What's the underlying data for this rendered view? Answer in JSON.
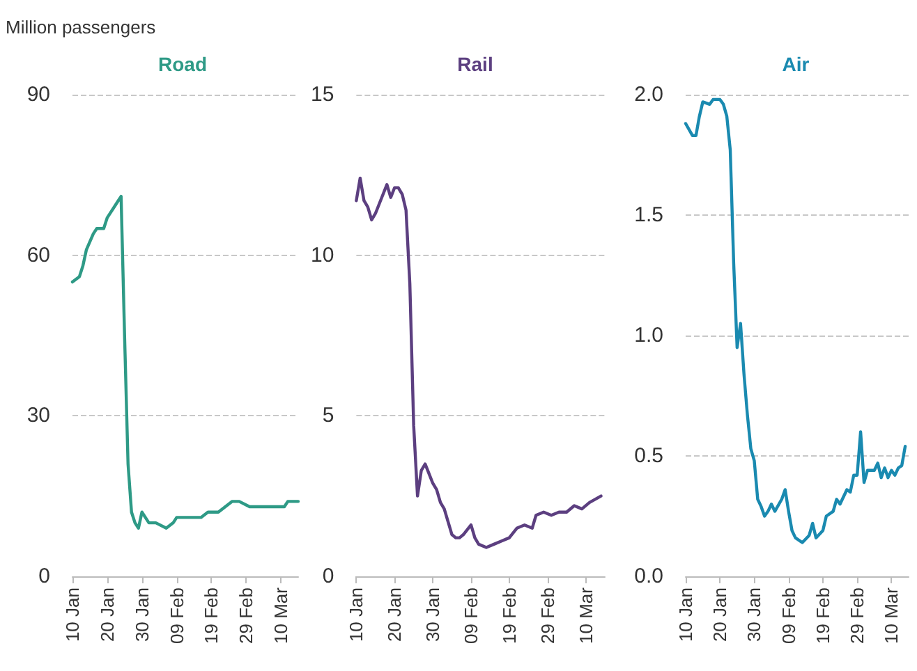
{
  "chart_data": [
    {
      "type": "line",
      "title": "Road",
      "ylabel": "Million passengers",
      "color": "#2e9a86",
      "marker": "none",
      "line_style": "solid",
      "grid": "y",
      "x": [
        "--01-10",
        "--01-12",
        "--01-13",
        "--01-14",
        "--01-16",
        "--01-17",
        "--01-19",
        "--01-20",
        "--01-22",
        "--01-23",
        "--01-24",
        "--01-25",
        "--01-26",
        "--01-27",
        "--01-28",
        "--01-29",
        "--01-30",
        "--02-01",
        "--02-03",
        "--02-06",
        "--02-08",
        "--02-09",
        "--02-12",
        "--02-16",
        "--02-18",
        "--02-21",
        "--02-23",
        "--02-25",
        "--02-27",
        "--03-01",
        "--03-06",
        "--03-11",
        "--03-12",
        "--03-15"
      ],
      "values": [
        55,
        56,
        58,
        61,
        64,
        65,
        65,
        67,
        69,
        70,
        71,
        45,
        21,
        12,
        10,
        9,
        12,
        10,
        10,
        9,
        10,
        11,
        11,
        11,
        12,
        12,
        13,
        14,
        14,
        13,
        13,
        13,
        14,
        14
      ],
      "xlim": [
        "--01-10",
        "--03-15"
      ],
      "xticks": [
        {
          "value": "--01-10",
          "label": "10 Jan"
        },
        {
          "value": "--01-20",
          "label": "20 Jan"
        },
        {
          "value": "--01-30",
          "label": "30 Jan"
        },
        {
          "value": "--02-09",
          "label": "09 Feb"
        },
        {
          "value": "--02-19",
          "label": "19 Feb"
        },
        {
          "value": "--02-29",
          "label": "29 Feb"
        },
        {
          "value": "--03-10",
          "label": "10 Mar"
        }
      ],
      "ylim": [
        0,
        90
      ],
      "yticks": [
        0,
        30,
        60,
        90
      ]
    },
    {
      "type": "line",
      "title": "Rail",
      "color": "#5c3f80",
      "marker": "none",
      "line_style": "solid",
      "grid": "y",
      "x": [
        "--01-10",
        "--01-11",
        "--01-12",
        "--01-13",
        "--01-14",
        "--01-15",
        "--01-17",
        "--01-18",
        "--01-19",
        "--01-20",
        "--01-21",
        "--01-22",
        "--01-23",
        "--01-24",
        "--01-25",
        "--01-26",
        "--01-27",
        "--01-28",
        "--01-29",
        "--01-30",
        "--01-31",
        "--02-01",
        "--02-02",
        "--02-03",
        "--02-04",
        "--02-05",
        "--02-06",
        "--02-07",
        "--02-09",
        "--02-10",
        "--02-11",
        "--02-13",
        "--02-15",
        "--02-17",
        "--02-19",
        "--02-21",
        "--02-23",
        "--02-25",
        "--02-26",
        "--02-28",
        "--03-01",
        "--03-03",
        "--03-05",
        "--03-07",
        "--03-09",
        "--03-11",
        "--03-14"
      ],
      "values": [
        11.7,
        12.4,
        11.7,
        11.5,
        11.1,
        11.3,
        11.9,
        12.2,
        11.8,
        12.1,
        12.1,
        11.9,
        11.4,
        9.1,
        4.7,
        2.5,
        3.3,
        3.5,
        3.2,
        2.9,
        2.7,
        2.3,
        2.1,
        1.7,
        1.3,
        1.2,
        1.2,
        1.3,
        1.6,
        1.2,
        1.0,
        0.9,
        1.0,
        1.1,
        1.2,
        1.5,
        1.6,
        1.5,
        1.9,
        2.0,
        1.9,
        2.0,
        2.0,
        2.2,
        2.1,
        2.3,
        2.5
      ],
      "xlim": [
        "--01-10",
        "--03-15"
      ],
      "xticks": [
        {
          "value": "--01-10",
          "label": "10 Jan"
        },
        {
          "value": "--01-20",
          "label": "20 Jan"
        },
        {
          "value": "--01-30",
          "label": "30 Jan"
        },
        {
          "value": "--02-09",
          "label": "09 Feb"
        },
        {
          "value": "--02-19",
          "label": "19 Feb"
        },
        {
          "value": "--02-29",
          "label": "29 Feb"
        },
        {
          "value": "--03-10",
          "label": "10 Mar"
        }
      ],
      "ylim": [
        0,
        15
      ],
      "yticks": [
        0,
        5,
        10,
        15
      ]
    },
    {
      "type": "line",
      "title": "Air",
      "color": "#1a8ab0",
      "marker": "none",
      "line_style": "solid",
      "grid": "y",
      "x": [
        "--01-10",
        "--01-12",
        "--01-13",
        "--01-14",
        "--01-15",
        "--01-17",
        "--01-18",
        "--01-20",
        "--01-21",
        "--01-22",
        "--01-23",
        "--01-24",
        "--01-25",
        "--01-26",
        "--01-27",
        "--01-28",
        "--01-29",
        "--01-30",
        "--01-31",
        "--02-01",
        "--02-02",
        "--02-03",
        "--02-04",
        "--02-05",
        "--02-07",
        "--02-08",
        "--02-09",
        "--02-10",
        "--02-11",
        "--02-13",
        "--02-15",
        "--02-16",
        "--02-17",
        "--02-19",
        "--02-20",
        "--02-22",
        "--02-23",
        "--02-24",
        "--02-26",
        "--02-27",
        "--02-28",
        "--02-29",
        "--03-01",
        "--03-02",
        "--03-03",
        "--03-05",
        "--03-06",
        "--03-07",
        "--03-08",
        "--03-09",
        "--03-10",
        "--03-11",
        "--03-12",
        "--03-13",
        "--03-14"
      ],
      "values": [
        1.88,
        1.83,
        1.83,
        1.91,
        1.97,
        1.96,
        1.98,
        1.98,
        1.96,
        1.91,
        1.77,
        1.3,
        0.95,
        1.05,
        0.84,
        0.67,
        0.53,
        0.48,
        0.32,
        0.29,
        0.25,
        0.27,
        0.3,
        0.27,
        0.32,
        0.36,
        0.27,
        0.19,
        0.16,
        0.14,
        0.17,
        0.22,
        0.16,
        0.19,
        0.25,
        0.27,
        0.32,
        0.3,
        0.36,
        0.35,
        0.42,
        0.42,
        0.6,
        0.39,
        0.44,
        0.44,
        0.47,
        0.41,
        0.45,
        0.41,
        0.44,
        0.42,
        0.45,
        0.46,
        0.54
      ],
      "xlim": [
        "--01-10",
        "--03-15"
      ],
      "xticks": [
        {
          "value": "--01-10",
          "label": "10 Jan"
        },
        {
          "value": "--01-20",
          "label": "20 Jan"
        },
        {
          "value": "--01-30",
          "label": "30 Jan"
        },
        {
          "value": "--02-09",
          "label": "09 Feb"
        },
        {
          "value": "--02-19",
          "label": "19 Feb"
        },
        {
          "value": "--02-29",
          "label": "29 Feb"
        },
        {
          "value": "--03-10",
          "label": "10 Mar"
        }
      ],
      "ylim": [
        0,
        2
      ],
      "yticks": [
        {
          "value": 0,
          "label": "0.0"
        },
        0.5,
        {
          "value": 1,
          "label": "1.0"
        },
        1.5,
        {
          "value": 2,
          "label": "2.0"
        }
      ]
    }
  ]
}
